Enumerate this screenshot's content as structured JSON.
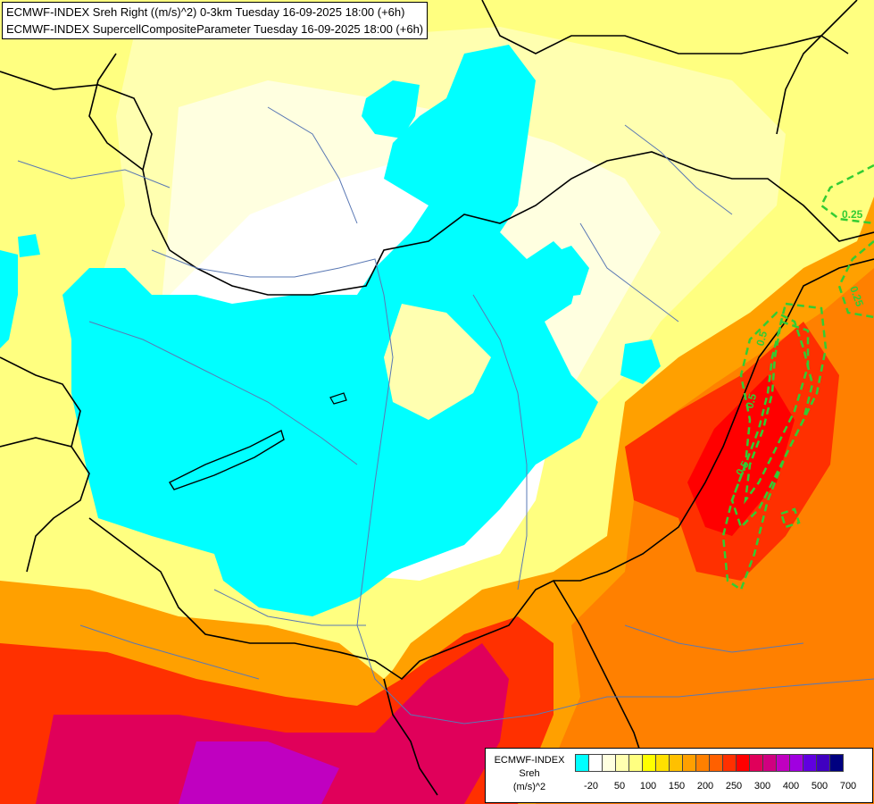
{
  "header": {
    "line1": "ECMWF-INDEX Sreh Right ((m/s)^2) 0-3km Tuesday 16-09-2025 18:00 (+6h)",
    "line2": "ECMWF-INDEX SupercellCompositeParameter Tuesday 16-09-2025 18:00 (+6h)"
  },
  "legend": {
    "title_line1": "ECMWF-INDEX",
    "title_line2": "Sreh",
    "title_line3": "(m/s)^2",
    "colors": [
      "#00ffff",
      "#ffffff",
      "#ffffe0",
      "#ffffb0",
      "#ffff80",
      "#ffff00",
      "#ffe000",
      "#ffc000",
      "#ffa000",
      "#ff8000",
      "#ff6000",
      "#ff3000",
      "#ff0000",
      "#e0005a",
      "#d00080",
      "#c000c0",
      "#a000e0",
      "#6000e0",
      "#4000c0",
      "#000080"
    ],
    "ticks": [
      "-20",
      "50",
      "100",
      "150",
      "200",
      "250",
      "300",
      "400",
      "500",
      "700"
    ]
  },
  "contour_labels": [
    "0.25",
    "0.25",
    "0.5",
    "0.5",
    "0.5"
  ],
  "colors": {
    "contour": "#33cc33",
    "border": "#000000",
    "river": "#5a78b4"
  }
}
